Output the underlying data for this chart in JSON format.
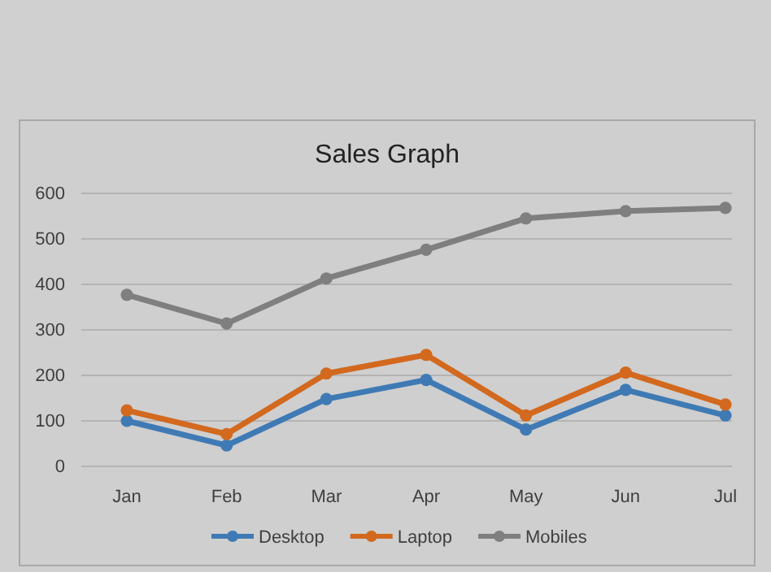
{
  "chart_data": {
    "type": "line",
    "title": "Sales Graph",
    "categories": [
      "Jan",
      "Feb",
      "Mar",
      "Apr",
      "May",
      "Jun",
      "Jul"
    ],
    "series": [
      {
        "name": "Desktop",
        "color": "#3f7ab5",
        "values": [
          100,
          46,
          148,
          190,
          81,
          168,
          112
        ]
      },
      {
        "name": "Laptop",
        "color": "#d2691e",
        "values": [
          123,
          71,
          204,
          245,
          112,
          206,
          136
        ]
      },
      {
        "name": "Mobiles",
        "color": "#7f7f7f",
        "values": [
          377,
          314,
          413,
          476,
          545,
          561,
          568
        ]
      }
    ],
    "ylim": [
      0,
      600
    ],
    "yticks": [
      0,
      100,
      200,
      300,
      400,
      500,
      600
    ],
    "grid": "y",
    "legend": "bottom",
    "marker": "circle",
    "line_style": "solid"
  }
}
